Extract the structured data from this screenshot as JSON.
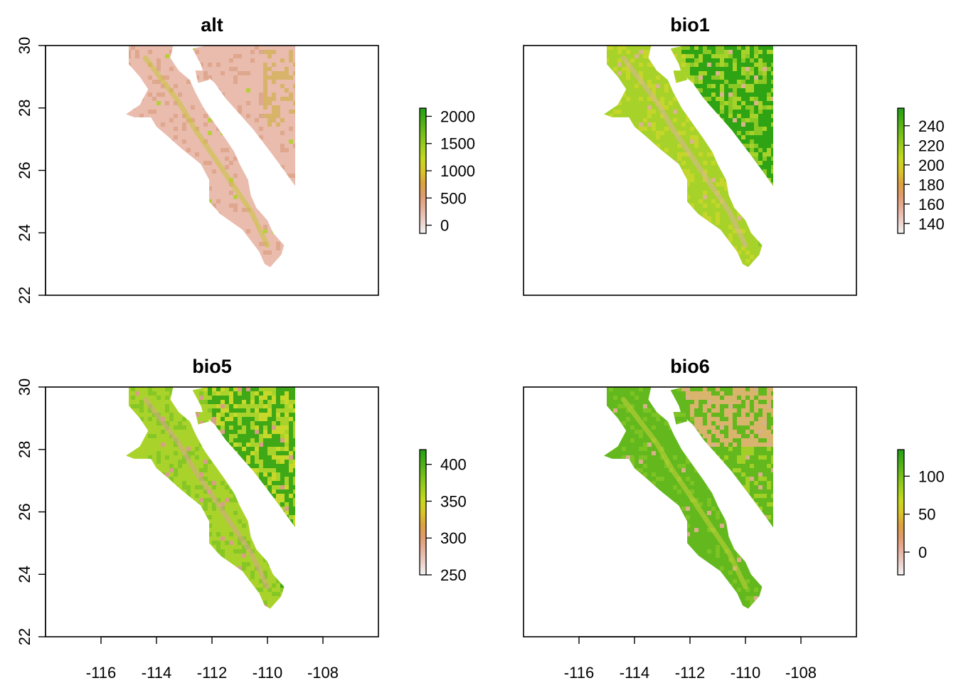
{
  "colors": {
    "ramp": [
      "#f2f2f2",
      "#eccfc7",
      "#e6b09c",
      "#e19b6d",
      "#dca23f",
      "#d8c62a",
      "#c4d81f",
      "#9ccd1e",
      "#73be1b",
      "#4aae17",
      "#229f12"
    ],
    "land_overlay_alt": "#e8b9aa",
    "frame": "#000000"
  },
  "chart_data": [
    {
      "type": "heatmap",
      "title": "alt",
      "xlim": [
        -118,
        -106
      ],
      "ylim": [
        22,
        30
      ],
      "x_ticks": [],
      "y_ticks": [
        22,
        24,
        26,
        28,
        30
      ],
      "legend": {
        "placement": "right",
        "min": -150,
        "max": 2150,
        "ticks": [
          0,
          500,
          1000,
          1500,
          2000
        ]
      },
      "xlabel": "",
      "ylabel": ""
    },
    {
      "type": "heatmap",
      "title": "bio1",
      "xlim": [
        -118,
        -106
      ],
      "ylim": [
        22,
        30
      ],
      "x_ticks": [],
      "y_ticks": [],
      "legend": {
        "placement": "right",
        "min": 130,
        "max": 258,
        "ticks": [
          140,
          160,
          180,
          200,
          220,
          240
        ]
      },
      "xlabel": "",
      "ylabel": ""
    },
    {
      "type": "heatmap",
      "title": "bio5",
      "xlim": [
        -118,
        -106
      ],
      "ylim": [
        22,
        30
      ],
      "x_ticks": [
        -116,
        -114,
        -112,
        -110,
        -108
      ],
      "y_ticks": [
        22,
        24,
        26,
        28,
        30
      ],
      "legend": {
        "placement": "right",
        "min": 250,
        "max": 420,
        "ticks": [
          250,
          300,
          350,
          400
        ]
      },
      "xlabel": "",
      "ylabel": ""
    },
    {
      "type": "heatmap",
      "title": "bio6",
      "xlim": [
        -118,
        -106
      ],
      "ylim": [
        22,
        30
      ],
      "x_ticks": [
        -116,
        -114,
        -112,
        -110,
        -108
      ],
      "y_ticks": [],
      "legend": {
        "placement": "right",
        "min": -30,
        "max": 135,
        "ticks": [
          0,
          50,
          100
        ]
      },
      "xlabel": "",
      "ylabel": ""
    }
  ]
}
